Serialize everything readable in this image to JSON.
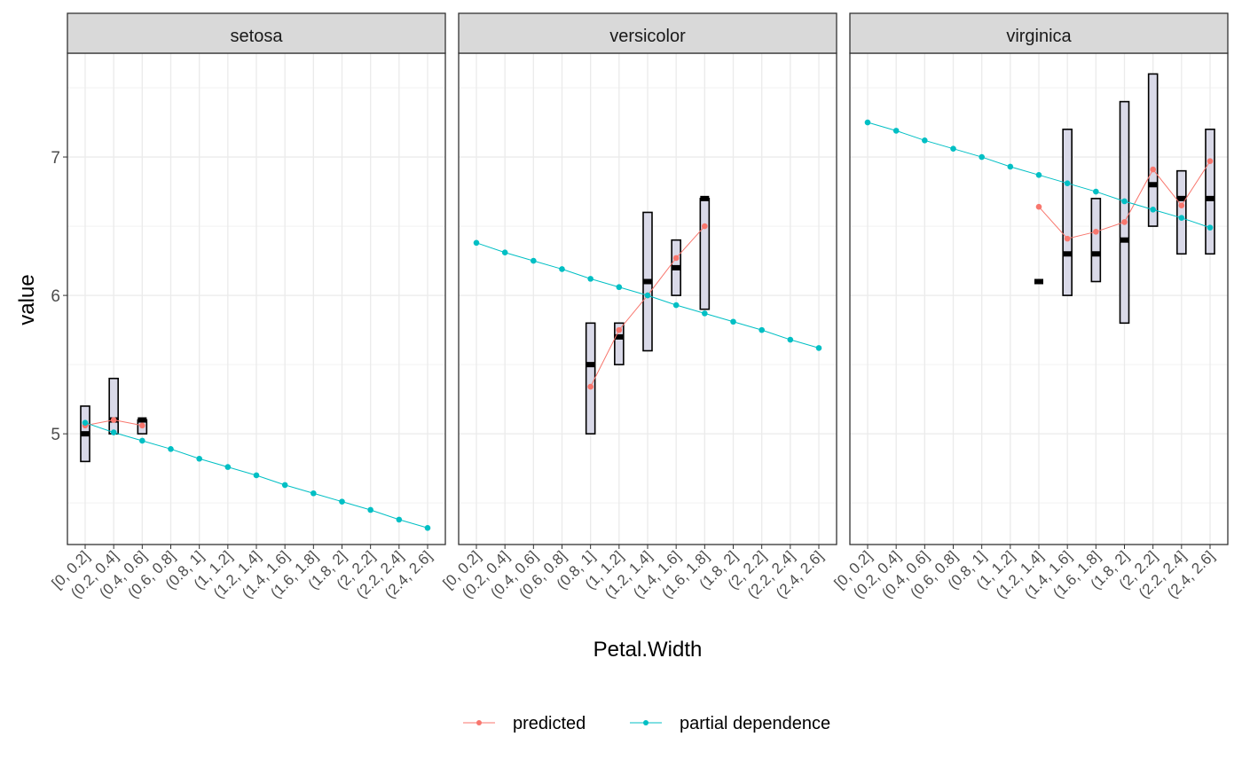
{
  "chart_data": {
    "type": "line",
    "xlabel": "Petal.Width",
    "ylabel": "value",
    "ylim": [
      4.2,
      7.75
    ],
    "yticks": [
      5,
      6,
      7
    ],
    "grid": true,
    "legend_position": "bottom",
    "categories": [
      "[0, 0.2]",
      "(0.2, 0.4]",
      "(0.4, 0.6]",
      "(0.6, 0.8]",
      "(0.8, 1]",
      "(1, 1.2]",
      "(1.2, 1.4]",
      "(1.4, 1.6]",
      "(1.6, 1.8]",
      "(1.8, 2]",
      "(2, 2.2]",
      "(2.2, 2.4]",
      "(2.4, 2.6]"
    ],
    "legend": [
      {
        "name": "predicted",
        "color": "#F8766D"
      },
      {
        "name": "partial dependence",
        "color": "#00BFC4"
      }
    ],
    "box_style": {
      "fill": "#D9D9E8",
      "stroke": "#000000"
    },
    "panels": [
      {
        "title": "setosa",
        "partial_dependence": [
          5.08,
          5.01,
          4.95,
          4.89,
          4.82,
          4.76,
          4.7,
          4.63,
          4.57,
          4.51,
          4.45,
          4.38,
          4.32
        ],
        "predicted": [
          5.06,
          5.1,
          5.06,
          null,
          null,
          null,
          null,
          null,
          null,
          null,
          null,
          null,
          null
        ],
        "ranges": [
          {
            "cat": 0,
            "low": 4.8,
            "high": 5.2,
            "median": 5.0
          },
          {
            "cat": 1,
            "low": 5.0,
            "high": 5.4,
            "median": 5.1
          },
          {
            "cat": 2,
            "low": 5.0,
            "high": 5.1,
            "median": 5.1
          }
        ]
      },
      {
        "title": "versicolor",
        "partial_dependence": [
          6.38,
          6.31,
          6.25,
          6.19,
          6.12,
          6.06,
          6.0,
          5.93,
          5.87,
          5.81,
          5.75,
          5.68,
          5.62
        ],
        "predicted": [
          null,
          null,
          null,
          null,
          5.34,
          5.75,
          6.0,
          6.27,
          6.5,
          null,
          null,
          null,
          null
        ],
        "ranges": [
          {
            "cat": 4,
            "low": 5.0,
            "high": 5.8,
            "median": 5.5
          },
          {
            "cat": 5,
            "low": 5.5,
            "high": 5.8,
            "median": 5.7
          },
          {
            "cat": 6,
            "low": 5.6,
            "high": 6.6,
            "median": 6.1
          },
          {
            "cat": 7,
            "low": 6.0,
            "high": 6.4,
            "median": 6.2
          },
          {
            "cat": 8,
            "low": 5.9,
            "high": 6.7,
            "median": 6.7
          }
        ]
      },
      {
        "title": "virginica",
        "partial_dependence": [
          7.25,
          7.19,
          7.12,
          7.06,
          7.0,
          6.93,
          6.87,
          6.81,
          6.75,
          6.68,
          6.62,
          6.56,
          6.49
        ],
        "predicted": [
          null,
          null,
          null,
          null,
          null,
          null,
          6.64,
          6.41,
          6.46,
          6.53,
          6.91,
          6.65,
          6.97
        ],
        "ranges": [
          {
            "cat": 6,
            "low": 6.1,
            "high": 6.1,
            "median": 6.1
          },
          {
            "cat": 7,
            "low": 6.0,
            "high": 7.2,
            "median": 6.3
          },
          {
            "cat": 8,
            "low": 6.1,
            "high": 6.7,
            "median": 6.3
          },
          {
            "cat": 9,
            "low": 5.8,
            "high": 7.4,
            "median": 6.4
          },
          {
            "cat": 10,
            "low": 6.5,
            "high": 7.6,
            "median": 6.8
          },
          {
            "cat": 11,
            "low": 6.3,
            "high": 6.9,
            "median": 6.7
          },
          {
            "cat": 12,
            "low": 6.3,
            "high": 7.2,
            "median": 6.7
          }
        ]
      }
    ]
  }
}
